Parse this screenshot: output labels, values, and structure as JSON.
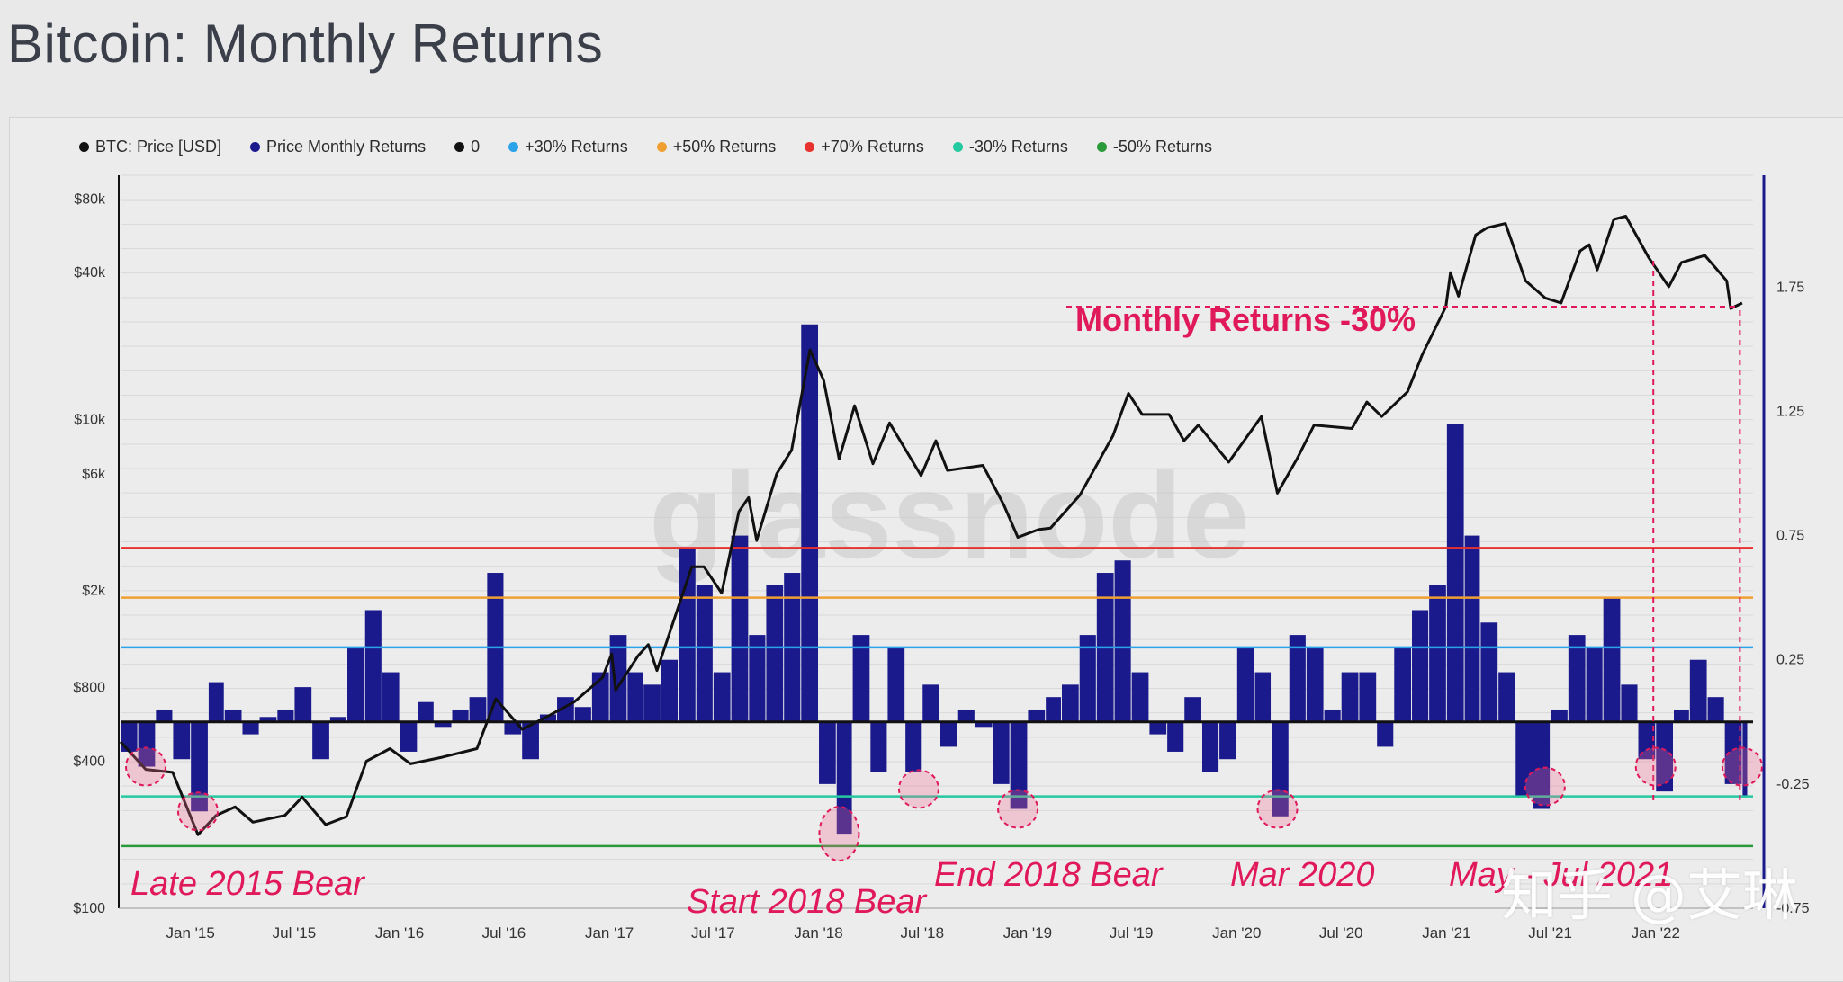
{
  "title": "Bitcoin: Monthly Returns",
  "legend": [
    {
      "label": "BTC: Price [USD]",
      "color": "#111111"
    },
    {
      "label": "Price Monthly Returns",
      "color": "#1a1a8c"
    },
    {
      "label": "0",
      "color": "#111111"
    },
    {
      "label": "+30% Returns",
      "color": "#2aa3e8"
    },
    {
      "label": "+50% Returns",
      "color": "#f0a030"
    },
    {
      "label": "+70% Returns",
      "color": "#e8322f"
    },
    {
      "label": "-30% Returns",
      "color": "#24c9a0"
    },
    {
      "label": "-50% Returns",
      "color": "#2a9a3a"
    }
  ],
  "watermark": "glassnode",
  "corner_mark": "知乎 @艾琳",
  "chart_data": {
    "type": "line",
    "title": "Bitcoin: Monthly Returns",
    "x_ticks": [
      "Jan '15",
      "Jul '15",
      "Jan '16",
      "Jul '16",
      "Jan '17",
      "Jul '17",
      "Jan '18",
      "Jul '18",
      "Jan '19",
      "Jul '19",
      "Jan '20",
      "Jul '20",
      "Jan '21",
      "Jul '21",
      "Jan '22"
    ],
    "x_tick_dates": [
      "2015-01-01",
      "2015-07-01",
      "2016-01-01",
      "2016-07-01",
      "2017-01-01",
      "2017-07-01",
      "2018-01-01",
      "2018-07-01",
      "2019-01-01",
      "2019-07-01",
      "2020-01-01",
      "2020-07-01",
      "2021-01-01",
      "2021-07-01",
      "2022-01-01"
    ],
    "x_range": [
      "2014-09-01",
      "2022-06-20"
    ],
    "left_axis": {
      "label": "",
      "scale": "log",
      "ticks": [
        "$100",
        "$400",
        "$800",
        "$2k",
        "$6k",
        "$10k",
        "$40k",
        "$80k"
      ],
      "tick_values": [
        100,
        400,
        800,
        2000,
        6000,
        10000,
        40000,
        80000
      ],
      "range": [
        100,
        100000
      ]
    },
    "right_axis": {
      "label": "",
      "scale": "linear",
      "ticks": [
        "-0.75",
        "-0.25",
        "0.25",
        "0.75",
        "1.25",
        "1.75"
      ],
      "tick_values": [
        -0.75,
        -0.25,
        0.25,
        0.75,
        1.25,
        1.75
      ],
      "range": [
        -0.75,
        2.2
      ]
    },
    "reference_lines": [
      {
        "name": "+70% Returns",
        "value": 0.7,
        "color": "#e8322f"
      },
      {
        "name": "+50% Returns",
        "value": 0.5,
        "color": "#f0a030"
      },
      {
        "name": "+30% Returns",
        "value": 0.3,
        "color": "#2aa3e8"
      },
      {
        "name": "0",
        "value": 0.0,
        "color": "#111111"
      },
      {
        "name": "-30% Returns",
        "value": -0.3,
        "color": "#24c9a0"
      },
      {
        "name": "-50% Returns",
        "value": -0.5,
        "color": "#2a9a3a"
      }
    ],
    "series": [
      {
        "name": "BTC: Price [USD]",
        "axis": "left",
        "color": "#111111",
        "points": [
          [
            "2014-09-01",
            480
          ],
          [
            "2014-10-15",
            370
          ],
          [
            "2014-12-01",
            360
          ],
          [
            "2015-01-14",
            200
          ],
          [
            "2015-02-15",
            240
          ],
          [
            "2015-03-20",
            260
          ],
          [
            "2015-04-20",
            225
          ],
          [
            "2015-06-15",
            240
          ],
          [
            "2015-07-15",
            285
          ],
          [
            "2015-08-25",
            220
          ],
          [
            "2015-09-30",
            237
          ],
          [
            "2015-11-04",
            400
          ],
          [
            "2015-12-15",
            450
          ],
          [
            "2016-01-20",
            390
          ],
          [
            "2016-03-15",
            415
          ],
          [
            "2016-05-15",
            450
          ],
          [
            "2016-06-17",
            720
          ],
          [
            "2016-08-02",
            540
          ],
          [
            "2016-09-15",
            610
          ],
          [
            "2016-11-01",
            700
          ],
          [
            "2016-12-20",
            880
          ],
          [
            "2017-01-05",
            1100
          ],
          [
            "2017-01-12",
            780
          ],
          [
            "2017-02-20",
            1080
          ],
          [
            "2017-03-10",
            1200
          ],
          [
            "2017-03-25",
            940
          ],
          [
            "2017-05-25",
            2500
          ],
          [
            "2017-06-15",
            2500
          ],
          [
            "2017-07-16",
            1950
          ],
          [
            "2017-08-15",
            4200
          ],
          [
            "2017-09-01",
            4800
          ],
          [
            "2017-09-15",
            3200
          ],
          [
            "2017-10-20",
            6000
          ],
          [
            "2017-11-15",
            7500
          ],
          [
            "2017-12-17",
            19300
          ],
          [
            "2018-01-10",
            14500
          ],
          [
            "2018-02-06",
            6900
          ],
          [
            "2018-03-05",
            11400
          ],
          [
            "2018-04-06",
            6600
          ],
          [
            "2018-05-05",
            9700
          ],
          [
            "2018-06-29",
            5900
          ],
          [
            "2018-07-25",
            8200
          ],
          [
            "2018-08-14",
            6200
          ],
          [
            "2018-10-15",
            6500
          ],
          [
            "2018-11-20",
            4500
          ],
          [
            "2018-12-15",
            3300
          ],
          [
            "2019-01-20",
            3550
          ],
          [
            "2019-02-10",
            3600
          ],
          [
            "2019-04-02",
            4900
          ],
          [
            "2019-05-30",
            8600
          ],
          [
            "2019-06-26",
            12800
          ],
          [
            "2019-07-20",
            10500
          ],
          [
            "2019-09-05",
            10500
          ],
          [
            "2019-10-01",
            8200
          ],
          [
            "2019-10-26",
            9500
          ],
          [
            "2019-12-18",
            6700
          ],
          [
            "2020-02-13",
            10300
          ],
          [
            "2020-03-12",
            5000
          ],
          [
            "2020-04-15",
            6900
          ],
          [
            "2020-05-15",
            9500
          ],
          [
            "2020-07-20",
            9200
          ],
          [
            "2020-08-15",
            11800
          ],
          [
            "2020-09-10",
            10300
          ],
          [
            "2020-10-25",
            13000
          ],
          [
            "2020-11-20",
            18500
          ],
          [
            "2020-12-31",
            29000
          ],
          [
            "2021-01-08",
            40000
          ],
          [
            "2021-01-22",
            32000
          ],
          [
            "2021-02-21",
            57000
          ],
          [
            "2021-03-13",
            61000
          ],
          [
            "2021-04-14",
            63500
          ],
          [
            "2021-05-19",
            37000
          ],
          [
            "2021-06-22",
            31500
          ],
          [
            "2021-07-20",
            30000
          ],
          [
            "2021-08-22",
            49000
          ],
          [
            "2021-09-07",
            52000
          ],
          [
            "2021-09-21",
            41000
          ],
          [
            "2021-10-20",
            66000
          ],
          [
            "2021-11-10",
            68000
          ],
          [
            "2021-12-20",
            46000
          ],
          [
            "2022-01-24",
            35000
          ],
          [
            "2022-02-15",
            44000
          ],
          [
            "2022-03-28",
            47000
          ],
          [
            "2022-05-05",
            37000
          ],
          [
            "2022-05-12",
            28500
          ],
          [
            "2022-06-01",
            30000
          ]
        ]
      },
      {
        "name": "Price Monthly Returns",
        "axis": "right",
        "color": "#1a1a8c",
        "points": [
          [
            "2014-09-01",
            -0.12
          ],
          [
            "2014-10-01",
            -0.18
          ],
          [
            "2014-11-01",
            0.05
          ],
          [
            "2014-12-01",
            -0.15
          ],
          [
            "2015-01-01",
            -0.36
          ],
          [
            "2015-02-01",
            0.16
          ],
          [
            "2015-03-01",
            0.05
          ],
          [
            "2015-04-01",
            -0.05
          ],
          [
            "2015-05-01",
            0.02
          ],
          [
            "2015-06-01",
            0.05
          ],
          [
            "2015-07-01",
            0.14
          ],
          [
            "2015-08-01",
            -0.15
          ],
          [
            "2015-09-01",
            0.02
          ],
          [
            "2015-10-01",
            0.3
          ],
          [
            "2015-11-01",
            0.45
          ],
          [
            "2015-12-01",
            0.2
          ],
          [
            "2016-01-01",
            -0.12
          ],
          [
            "2016-02-01",
            0.08
          ],
          [
            "2016-03-01",
            -0.02
          ],
          [
            "2016-04-01",
            0.05
          ],
          [
            "2016-05-01",
            0.1
          ],
          [
            "2016-06-01",
            0.6
          ],
          [
            "2016-07-01",
            -0.05
          ],
          [
            "2016-08-01",
            -0.15
          ],
          [
            "2016-09-01",
            0.03
          ],
          [
            "2016-10-01",
            0.1
          ],
          [
            "2016-11-01",
            0.06
          ],
          [
            "2016-12-01",
            0.2
          ],
          [
            "2017-01-01",
            0.35
          ],
          [
            "2017-02-01",
            0.2
          ],
          [
            "2017-03-01",
            0.15
          ],
          [
            "2017-04-01",
            0.25
          ],
          [
            "2017-05-01",
            0.7
          ],
          [
            "2017-06-01",
            0.55
          ],
          [
            "2017-07-01",
            0.2
          ],
          [
            "2017-08-01",
            0.75
          ],
          [
            "2017-09-01",
            0.35
          ],
          [
            "2017-10-01",
            0.55
          ],
          [
            "2017-11-01",
            0.6
          ],
          [
            "2017-12-01",
            1.6
          ],
          [
            "2018-01-01",
            -0.25
          ],
          [
            "2018-02-01",
            -0.45
          ],
          [
            "2018-03-01",
            0.35
          ],
          [
            "2018-04-01",
            -0.2
          ],
          [
            "2018-05-01",
            0.3
          ],
          [
            "2018-06-01",
            -0.2
          ],
          [
            "2018-07-01",
            0.15
          ],
          [
            "2018-08-01",
            -0.1
          ],
          [
            "2018-09-01",
            0.05
          ],
          [
            "2018-10-01",
            -0.02
          ],
          [
            "2018-11-01",
            -0.25
          ],
          [
            "2018-12-01",
            -0.35
          ],
          [
            "2019-01-01",
            0.05
          ],
          [
            "2019-02-01",
            0.1
          ],
          [
            "2019-03-01",
            0.15
          ],
          [
            "2019-04-01",
            0.35
          ],
          [
            "2019-05-01",
            0.6
          ],
          [
            "2019-06-01",
            0.65
          ],
          [
            "2019-07-01",
            0.2
          ],
          [
            "2019-08-01",
            -0.05
          ],
          [
            "2019-09-01",
            -0.12
          ],
          [
            "2019-10-01",
            0.1
          ],
          [
            "2019-11-01",
            -0.2
          ],
          [
            "2019-12-01",
            -0.15
          ],
          [
            "2020-01-01",
            0.3
          ],
          [
            "2020-02-01",
            0.2
          ],
          [
            "2020-03-01",
            -0.38
          ],
          [
            "2020-04-01",
            0.35
          ],
          [
            "2020-05-01",
            0.3
          ],
          [
            "2020-06-01",
            0.05
          ],
          [
            "2020-07-01",
            0.2
          ],
          [
            "2020-08-01",
            0.2
          ],
          [
            "2020-09-01",
            -0.1
          ],
          [
            "2020-10-01",
            0.3
          ],
          [
            "2020-11-01",
            0.45
          ],
          [
            "2020-12-01",
            0.55
          ],
          [
            "2021-01-01",
            1.2
          ],
          [
            "2021-02-01",
            0.75
          ],
          [
            "2021-03-01",
            0.4
          ],
          [
            "2021-04-01",
            0.2
          ],
          [
            "2021-05-01",
            -0.3
          ],
          [
            "2021-06-01",
            -0.35
          ],
          [
            "2021-07-01",
            0.05
          ],
          [
            "2021-08-01",
            0.35
          ],
          [
            "2021-09-01",
            0.3
          ],
          [
            "2021-10-01",
            0.5
          ],
          [
            "2021-11-01",
            0.15
          ],
          [
            "2021-12-01",
            -0.15
          ],
          [
            "2022-01-01",
            -0.28
          ],
          [
            "2022-02-01",
            0.05
          ],
          [
            "2022-03-01",
            0.25
          ],
          [
            "2022-04-01",
            0.1
          ],
          [
            "2022-05-01",
            -0.25
          ],
          [
            "2022-06-01",
            -0.3
          ]
        ]
      }
    ],
    "annotations": [
      {
        "text": "Monthly Returns -30%",
        "date": "2020-12-31",
        "value": 29000
      },
      {
        "text": "Late 2015 Bear",
        "date": "2015-01-14",
        "value": -0.36
      },
      {
        "text": "Start 2018 Bear",
        "date": "2018-02-06",
        "value": -0.45
      },
      {
        "text": "End 2018 Bear",
        "date": "2018-12-15",
        "value": -0.35
      },
      {
        "text": "Mar 2020",
        "date": "2020-03-12",
        "value": -0.38
      },
      {
        "text": "May - Jul 2021",
        "date": "2021-06-22",
        "value": -0.35
      }
    ]
  }
}
